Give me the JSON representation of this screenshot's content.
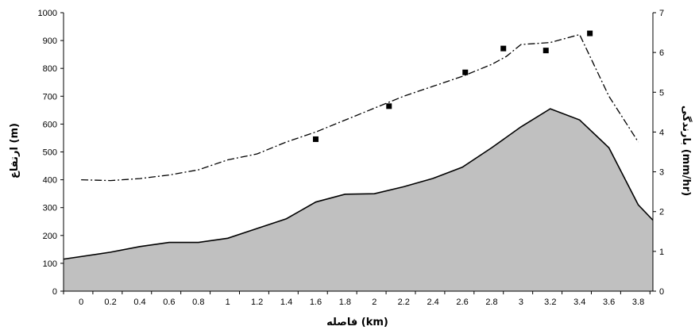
{
  "chart_data": {
    "type": "area",
    "xlabel": "فاصله (km)",
    "ylabel": "ارتفاع (m)",
    "y2label": "بارندگی (mm/hr)",
    "xlim": [
      -0.12,
      3.9
    ],
    "ylim": [
      0,
      1000
    ],
    "y2lim": [
      0,
      7
    ],
    "x_ticks": [
      "0",
      "0.2",
      "0.4",
      "0.6",
      "0.8",
      "1",
      "1.2",
      "1.4",
      "1.6",
      "1.8",
      "2",
      "2.2",
      "2.4",
      "2.6",
      "2.8",
      "3",
      "3.2",
      "3.4",
      "3.6",
      "3.8"
    ],
    "y_ticks": [
      "0",
      "100",
      "200",
      "300",
      "400",
      "500",
      "600",
      "700",
      "800",
      "900",
      "1000"
    ],
    "y2_ticks": [
      "0",
      "1",
      "2",
      "3",
      "4",
      "5",
      "6",
      "7"
    ],
    "grid": false,
    "legend": "none",
    "series": [
      {
        "kind": "area",
        "axis": "left",
        "fill": "#c0c0c0",
        "stroke": "#000000",
        "x": [
          -0.12,
          0.2,
          0.4,
          0.6,
          0.8,
          1.0,
          1.2,
          1.4,
          1.6,
          1.8,
          2.0,
          2.2,
          2.4,
          2.6,
          2.8,
          3.0,
          3.2,
          3.4,
          3.6,
          3.8,
          3.9
        ],
        "values": [
          115,
          140,
          160,
          175,
          175,
          190,
          225,
          260,
          320,
          348,
          350,
          375,
          405,
          445,
          515,
          590,
          655,
          615,
          515,
          310,
          255
        ]
      },
      {
        "kind": "line",
        "axis": "right",
        "stroke": "#000000",
        "dash": "dash-dot",
        "x": [
          0,
          0.2,
          0.4,
          0.6,
          0.8,
          1.0,
          1.2,
          1.4,
          1.6,
          1.8,
          2.0,
          2.2,
          2.4,
          2.6,
          2.8,
          2.9,
          3.0,
          3.2,
          3.4,
          3.6,
          3.8
        ],
        "values": [
          2.8,
          2.78,
          2.83,
          2.92,
          3.05,
          3.3,
          3.45,
          3.75,
          4.0,
          4.3,
          4.6,
          4.9,
          5.15,
          5.4,
          5.7,
          5.9,
          6.2,
          6.25,
          6.45,
          4.9,
          3.75
        ]
      },
      {
        "kind": "scatter",
        "axis": "right",
        "marker": "square",
        "color": "#000000",
        "x": [
          1.6,
          2.1,
          2.62,
          2.88,
          3.17,
          3.47
        ],
        "values": [
          3.82,
          4.65,
          5.5,
          6.1,
          6.05,
          6.48
        ]
      }
    ]
  }
}
